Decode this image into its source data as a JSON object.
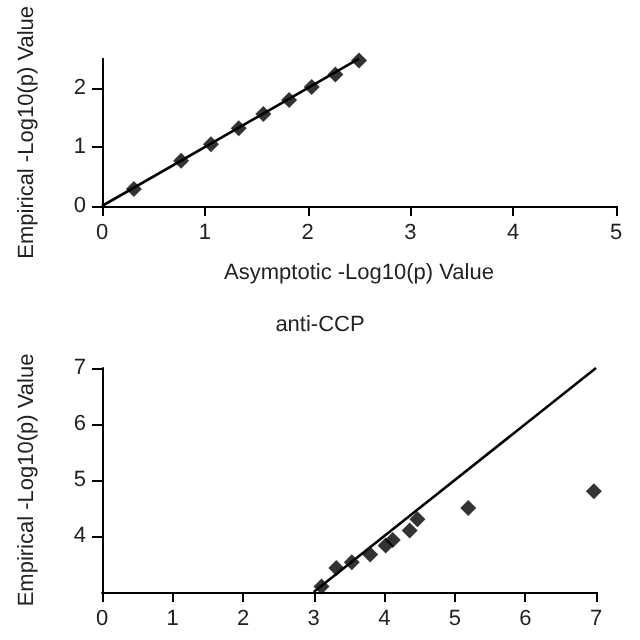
{
  "chart_data": [
    {
      "type": "scatter",
      "xlabel": "Asymptotic -Log10(p) Value",
      "ylabel": "Empirical -Log10(p) Value",
      "xlim": [
        0,
        5
      ],
      "xticks": [
        0,
        1,
        2,
        3,
        4,
        5
      ],
      "ylim": [
        0,
        2.5
      ],
      "yticks": [
        0,
        1,
        2
      ],
      "grid": false,
      "marker": "diamond",
      "series": [
        {
          "type": "scatter",
          "color": "#000000",
          "x": [
            0.31,
            0.77,
            1.06,
            1.33,
            1.57,
            1.82,
            2.04,
            2.27,
            2.5
          ],
          "values": [
            0.29,
            0.77,
            1.05,
            1.32,
            1.56,
            1.8,
            2.02,
            2.23,
            2.47
          ]
        },
        {
          "type": "line",
          "color": "#000000",
          "marker": "none",
          "line_style": "solid",
          "x": [
            0,
            2.5
          ],
          "values": [
            0,
            2.5
          ]
        }
      ]
    },
    {
      "type": "scatter",
      "title": "anti-CCP",
      "ylabel": "Empirical -Log10(p) Value",
      "xlim": [
        0,
        7
      ],
      "xticks": [
        0,
        1,
        2,
        3,
        4,
        5,
        6,
        7
      ],
      "ylim": [
        3,
        7
      ],
      "yticks": [
        4,
        5,
        6,
        7
      ],
      "grid": false,
      "marker": "diamond",
      "series": [
        {
          "type": "scatter",
          "color": "#000000",
          "x": [
            3.11,
            3.32,
            3.54,
            3.8,
            4.02,
            4.12,
            4.36,
            4.47,
            5.19,
            6.97
          ],
          "values": [
            3.1,
            3.43,
            3.53,
            3.67,
            3.83,
            3.93,
            4.1,
            4.3,
            4.5,
            4.8
          ]
        },
        {
          "type": "line",
          "color": "#000000",
          "marker": "none",
          "line_style": "solid",
          "x": [
            3,
            7
          ],
          "values": [
            3,
            7
          ]
        }
      ]
    }
  ]
}
